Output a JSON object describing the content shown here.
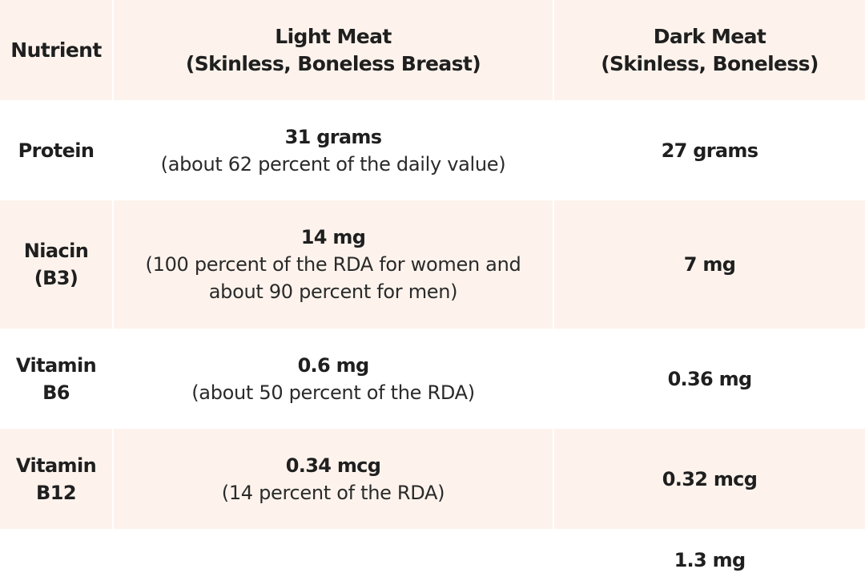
{
  "header": {
    "nutrient": "Nutrient",
    "light": "Light Meat\n(Skinless, Boneless Breast)",
    "dark": "Dark Meat\n(Skinless, Boneless)"
  },
  "rows": [
    {
      "label": "Protein",
      "light_value": "31 grams",
      "light_note": "(about 62 percent of the daily value)",
      "dark_value": "27 grams"
    },
    {
      "label": "Niacin\n(B3)",
      "light_value": "14 mg",
      "light_note": "(100 percent of the RDA for women and\nabout 90 percent for men)",
      "dark_value": "7 mg"
    },
    {
      "label": "Vitamin\nB6",
      "light_value": "0.6 mg",
      "light_note": "(about 50 percent of the RDA)",
      "dark_value": "0.36 mg"
    },
    {
      "label": "Vitamin\nB12",
      "light_value": "0.34 mcg",
      "light_note": "(14 percent of the RDA)",
      "dark_value": "0.32 mcg"
    },
    {
      "label": "",
      "light_value": "",
      "light_note": "",
      "dark_value": "1.3 mg"
    }
  ],
  "colors": {
    "header_bg": "#fdf3ec",
    "alt_row_bg": "#fdf3ec",
    "text": "#1f1f1f"
  }
}
